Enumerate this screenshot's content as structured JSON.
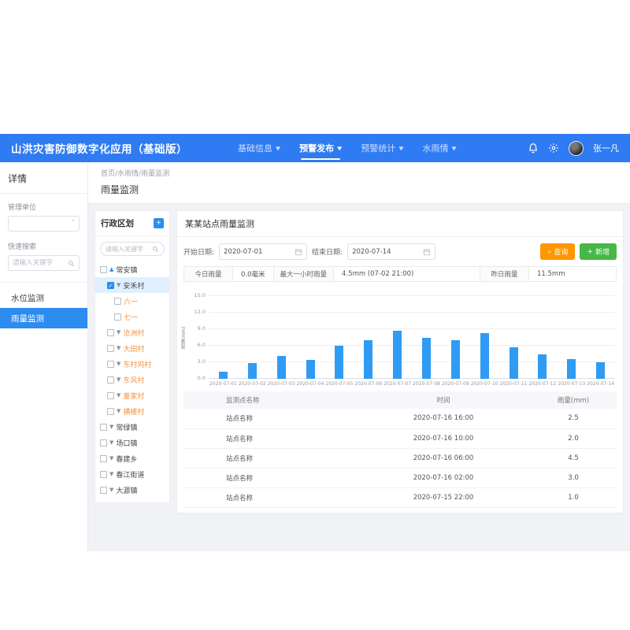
{
  "navbar": {
    "title": "山洪灾害防御数字化应用（基础版）",
    "menu": [
      {
        "label": "基础信息",
        "active": false
      },
      {
        "label": "预警发布",
        "active": true
      },
      {
        "label": "预警统计",
        "active": false
      },
      {
        "label": "水雨情",
        "active": false
      }
    ],
    "user": "张一凡"
  },
  "sidebar": {
    "title": "详情",
    "org_label": "管理单位",
    "search_label": "快速搜索",
    "search_placeholder": "请输入关键字",
    "items": [
      {
        "label": "水位监测",
        "active": false
      },
      {
        "label": "雨量监测",
        "active": true
      }
    ]
  },
  "breadcrumb": "首页/水雨情/雨量监测",
  "page_title": "雨量监测",
  "tree": {
    "title": "行政区划",
    "add_label": "+",
    "search_placeholder": "请输入关键字",
    "items": [
      {
        "label": "常安镇",
        "level": 0,
        "checked": false,
        "caret": "up",
        "color": "dark",
        "selected": false
      },
      {
        "label": "安禾村",
        "level": 1,
        "checked": true,
        "caret": "down",
        "color": "dark",
        "selected": true
      },
      {
        "label": "六一",
        "level": 2,
        "checked": false,
        "caret": null,
        "color": "orange",
        "selected": false
      },
      {
        "label": "七一",
        "level": 2,
        "checked": false,
        "caret": null,
        "color": "orange",
        "selected": false
      },
      {
        "label": "沧洲村",
        "level": 1,
        "checked": false,
        "caret": "down",
        "color": "orange",
        "selected": false
      },
      {
        "label": "大田村",
        "level": 1,
        "checked": false,
        "caret": "down",
        "color": "orange",
        "selected": false
      },
      {
        "label": "东村坞村",
        "level": 1,
        "checked": false,
        "caret": "down",
        "color": "orange",
        "selected": false
      },
      {
        "label": "东风村",
        "level": 1,
        "checked": false,
        "caret": "down",
        "color": "orange",
        "selected": false
      },
      {
        "label": "董家村",
        "level": 1,
        "checked": false,
        "caret": "down",
        "color": "orange",
        "selected": false
      },
      {
        "label": "横槎村",
        "level": 1,
        "checked": false,
        "caret": "down",
        "color": "orange",
        "selected": false
      },
      {
        "label": "常绿镇",
        "level": 0,
        "checked": false,
        "caret": "down",
        "color": "dark",
        "selected": false
      },
      {
        "label": "场口镇",
        "level": 0,
        "checked": false,
        "caret": "down",
        "color": "dark",
        "selected": false
      },
      {
        "label": "春建乡",
        "level": 0,
        "checked": false,
        "caret": "down",
        "color": "dark",
        "selected": false
      },
      {
        "label": "春江街道",
        "level": 0,
        "checked": false,
        "caret": "down",
        "color": "dark",
        "selected": false
      },
      {
        "label": "大源镇",
        "level": 0,
        "checked": false,
        "caret": "down",
        "color": "dark",
        "selected": false
      }
    ]
  },
  "panel": {
    "title": "某某站点雨量监测",
    "filters": {
      "start_label": "开始日期:",
      "start_value": "2020-07-01",
      "end_label": "结束日期:",
      "end_value": "2020-07-14",
      "query_label": "查询",
      "add_label": "新增"
    },
    "stats": [
      {
        "label": "今日雨量",
        "value": "0.0毫米"
      },
      {
        "label": "最大一小时雨量",
        "value": "4.5mm (07-02 21:00)"
      },
      {
        "label": "昨日雨量",
        "value": "11.5mm"
      }
    ]
  },
  "chart_data": {
    "type": "bar",
    "title": "",
    "xlabel": "",
    "ylabel": "雨量(mm)",
    "categories": [
      "2020-07-01",
      "2020-07-02",
      "2020-07-03",
      "2020-07-04",
      "2020-07-05",
      "2020-07-06",
      "2020-07-07",
      "2020-07-08",
      "2020-07-09",
      "2020-07-10",
      "2020-07-11",
      "2020-07-12",
      "2020-07-13",
      "2020-07-14"
    ],
    "values": [
      1.3,
      2.8,
      4.1,
      3.5,
      6.0,
      7.0,
      8.7,
      7.4,
      7.0,
      8.3,
      5.7,
      4.4,
      3.6,
      3.0
    ],
    "ylim": [
      0,
      15
    ],
    "yticks": [
      0.0,
      3.0,
      6.0,
      9.0,
      12.0,
      15.0
    ],
    "grid": true,
    "legend": null,
    "bar_color": "#2f9bf4"
  },
  "table": {
    "columns": [
      "监测点名称",
      "时间",
      "雨量(mm)"
    ],
    "rows": [
      [
        "站点名称",
        "2020-07-16 16:00",
        "2.5"
      ],
      [
        "站点名称",
        "2020-07-16 10:00",
        "2.0"
      ],
      [
        "站点名称",
        "2020-07-16 06:00",
        "4.5"
      ],
      [
        "站点名称",
        "2020-07-16 02:00",
        "3.0"
      ],
      [
        "站点名称",
        "2020-07-15 22:00",
        "1.0"
      ]
    ]
  },
  "colors": {
    "navbar_blue": "#2e7bf3",
    "accent_blue": "#2d8cf0",
    "bar_blue": "#2f9bf4",
    "query_orange": "#ff9700",
    "add_green": "#47b747",
    "village_orange": "#f5923c",
    "content_gray": "#f0f2f5",
    "selected_row_blue": "#e0f0ff"
  }
}
